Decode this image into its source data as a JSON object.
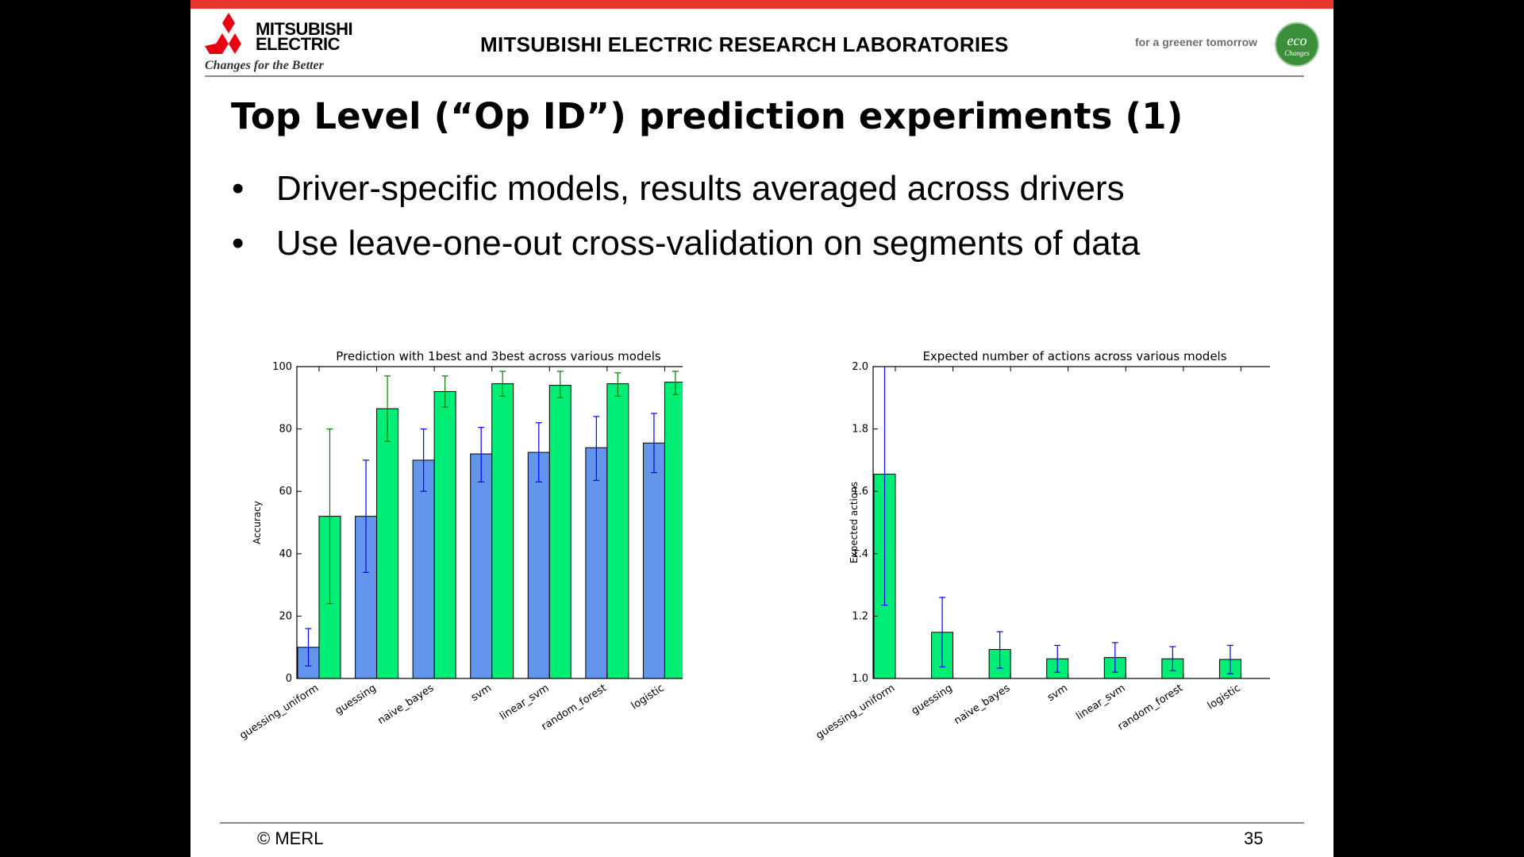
{
  "colors": {
    "top_bar": "#e8362d",
    "logo_red": "#e60012",
    "eco_green": "#3c8f3a",
    "bar_1best": "#6495ed",
    "bar_3best": "#00ee76",
    "err_1best": "#0000ff",
    "err_3best": "#008000"
  },
  "header": {
    "logo_line1": "MITSUBISHI",
    "logo_line2": "ELECTRIC",
    "logo_tagline": "Changes for the Better",
    "lab_name": "MITSUBISHI ELECTRIC RESEARCH LABORATORIES",
    "eco_tagline": "for a greener tomorrow",
    "eco_badge_line1": "eco",
    "eco_badge_line2": "Changes",
    "logo_icon": "three-diamonds-logo-icon"
  },
  "slide": {
    "title": "Top Level (“Op ID”) prediction experiments (1)",
    "bullets": [
      "Driver-specific models, results averaged across drivers",
      "Use leave-one-out cross-validation on segments of data"
    ],
    "bullet_symbol": "•"
  },
  "footer": {
    "copyright": "© MERL",
    "page_number": "35"
  },
  "chart_data": [
    {
      "type": "bar",
      "title": "Prediction with 1best and 3best across various models",
      "xlabel": "",
      "ylabel": "Accuracy",
      "ylim": [
        0,
        100
      ],
      "yticks": [
        0,
        20,
        40,
        60,
        80,
        100
      ],
      "categories": [
        "guessing_uniform",
        "guessing",
        "naive_bayes",
        "svm",
        "linear_svm",
        "random_forest",
        "logistic"
      ],
      "legend_position": "top-right",
      "series": [
        {
          "name": "1best",
          "values": [
            10,
            52,
            70,
            72,
            72.5,
            74,
            75.5
          ],
          "err_low": [
            4,
            34,
            60,
            63,
            63,
            63.5,
            66
          ],
          "err_high": [
            16,
            70,
            80,
            80.5,
            82,
            84,
            85
          ]
        },
        {
          "name": "3best",
          "values": [
            52,
            86.5,
            92,
            94.5,
            94,
            94.5,
            95
          ],
          "err_low": [
            24,
            76,
            87,
            90.5,
            90,
            90.5,
            91
          ],
          "err_high": [
            80,
            97,
            97,
            98.5,
            98.5,
            98,
            98.5
          ]
        }
      ]
    },
    {
      "type": "bar",
      "title": "Expected number of actions across various models",
      "xlabel": "",
      "ylabel": "Expected actions",
      "ylim": [
        1.0,
        2.0
      ],
      "yticks": [
        1.0,
        1.2,
        1.4,
        1.6,
        1.8,
        2.0
      ],
      "categories": [
        "guessing_uniform",
        "guessing",
        "naive_bayes",
        "svm",
        "linear_svm",
        "random_forest",
        "logistic"
      ],
      "series": [
        {
          "values": [
            1.655,
            1.148,
            1.093,
            1.063,
            1.067,
            1.063,
            1.061
          ],
          "err_low": [
            1.235,
            1.037,
            1.033,
            1.02,
            1.02,
            1.025,
            1.015
          ],
          "err_high": [
            2.08,
            1.26,
            1.15,
            1.106,
            1.115,
            1.102,
            1.106
          ]
        }
      ]
    }
  ]
}
